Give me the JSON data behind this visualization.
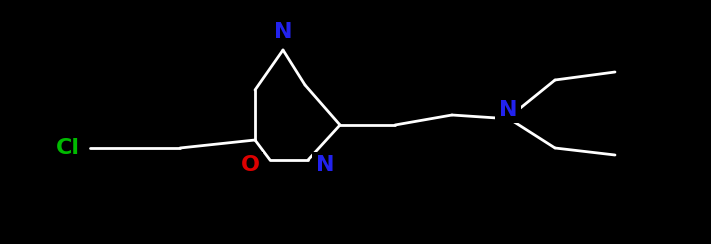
{
  "background_color": "#000000",
  "white": "#ffffff",
  "blue": "#2222ee",
  "red": "#dd0000",
  "green": "#00bb00",
  "lw": 2.0,
  "fs": 16,
  "figsize": [
    7.11,
    2.44
  ],
  "dpi": 100,
  "atoms": {
    "N_top": {
      "xi": 283,
      "yi": 32,
      "label": "N",
      "color": "#2222ee"
    },
    "O": {
      "xi": 250,
      "yi": 165,
      "label": "O",
      "color": "#dd0000"
    },
    "N_bot": {
      "xi": 325,
      "yi": 165,
      "label": "N",
      "color": "#2222ee"
    },
    "N_amine": {
      "xi": 508,
      "yi": 110,
      "label": "N",
      "color": "#2222ee"
    },
    "Cl": {
      "xi": 68,
      "yi": 148,
      "label": "Cl",
      "color": "#00bb00"
    }
  },
  "bonds": [
    {
      "x1i": 283,
      "y1i": 50,
      "x2i": 255,
      "y2i": 90,
      "dbl": false
    },
    {
      "x1i": 255,
      "y1i": 90,
      "x2i": 255,
      "y2i": 140,
      "dbl": false
    },
    {
      "x1i": 255,
      "y1i": 140,
      "x2i": 270,
      "y2i": 160,
      "dbl": false
    },
    {
      "x1i": 270,
      "y1i": 160,
      "x2i": 308,
      "y2i": 160,
      "dbl": false
    },
    {
      "x1i": 308,
      "y1i": 160,
      "x2i": 340,
      "y2i": 125,
      "dbl": false
    },
    {
      "x1i": 340,
      "y1i": 125,
      "x2i": 305,
      "y2i": 85,
      "dbl": false
    },
    {
      "x1i": 305,
      "y1i": 85,
      "x2i": 283,
      "y2i": 50,
      "dbl": false
    },
    {
      "x1i": 340,
      "y1i": 125,
      "x2i": 395,
      "y2i": 125,
      "dbl": false
    },
    {
      "x1i": 395,
      "y1i": 125,
      "x2i": 452,
      "y2i": 115,
      "dbl": false
    },
    {
      "x1i": 452,
      "y1i": 115,
      "x2i": 497,
      "y2i": 118,
      "dbl": false
    },
    {
      "x1i": 508,
      "y1i": 118,
      "x2i": 555,
      "y2i": 80,
      "dbl": false
    },
    {
      "x1i": 508,
      "y1i": 118,
      "x2i": 555,
      "y2i": 148,
      "dbl": false
    },
    {
      "x1i": 555,
      "y1i": 80,
      "x2i": 615,
      "y2i": 72,
      "dbl": false
    },
    {
      "x1i": 555,
      "y1i": 148,
      "x2i": 615,
      "y2i": 155,
      "dbl": false
    },
    {
      "x1i": 255,
      "y1i": 140,
      "x2i": 180,
      "y2i": 148,
      "dbl": false
    },
    {
      "x1i": 180,
      "y1i": 148,
      "x2i": 90,
      "y2i": 148,
      "dbl": false
    }
  ]
}
